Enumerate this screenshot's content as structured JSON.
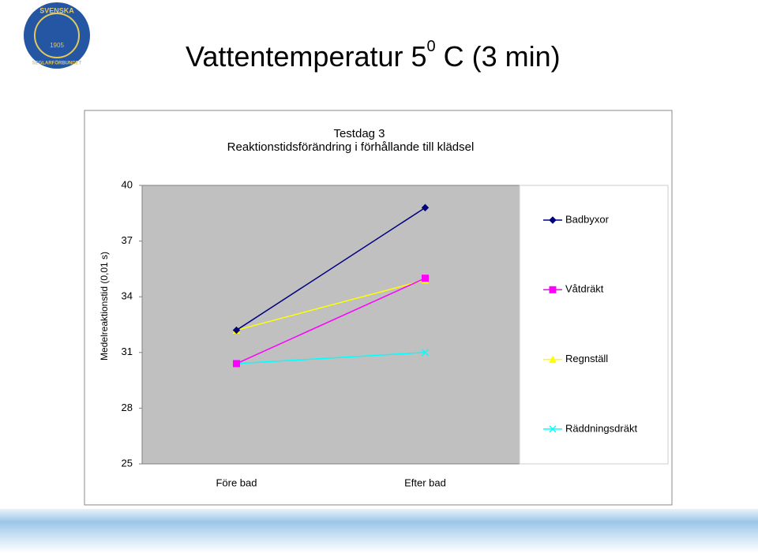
{
  "logo": {
    "top": "SVENSKA",
    "bottom": "SEGLARFÖRBUNDET",
    "year": "1905"
  },
  "slide_title": {
    "text": "Vattentemperatur 5",
    "superscript": "0",
    "rest": " C (3 min)"
  },
  "chart_data": {
    "type": "line",
    "title": "Testdag 3",
    "subtitle": "Reaktionstidsförändring i förhållande till klädsel",
    "y_label": "Medelreaktionstid (0,01 s)",
    "categories": [
      "Före bad",
      "Efter bad"
    ],
    "series": [
      {
        "name": "Badbyxor",
        "color": "#000080",
        "marker": "diamond",
        "values": [
          32.2,
          38.8
        ]
      },
      {
        "name": "Våtdräkt",
        "color": "#ff00ff",
        "marker": "square",
        "values": [
          30.4,
          35.0
        ]
      },
      {
        "name": "Regnställ",
        "color": "#ffff00",
        "marker": "triangle",
        "values": [
          32.2,
          34.9
        ]
      },
      {
        "name": "Räddningsdräkt",
        "color": "#00ffff",
        "marker": "x",
        "values": [
          30.4,
          31.0
        ]
      }
    ],
    "ylim": [
      25,
      40
    ],
    "yticks": [
      25,
      28,
      31,
      34,
      37,
      40
    ],
    "legend": "right"
  }
}
